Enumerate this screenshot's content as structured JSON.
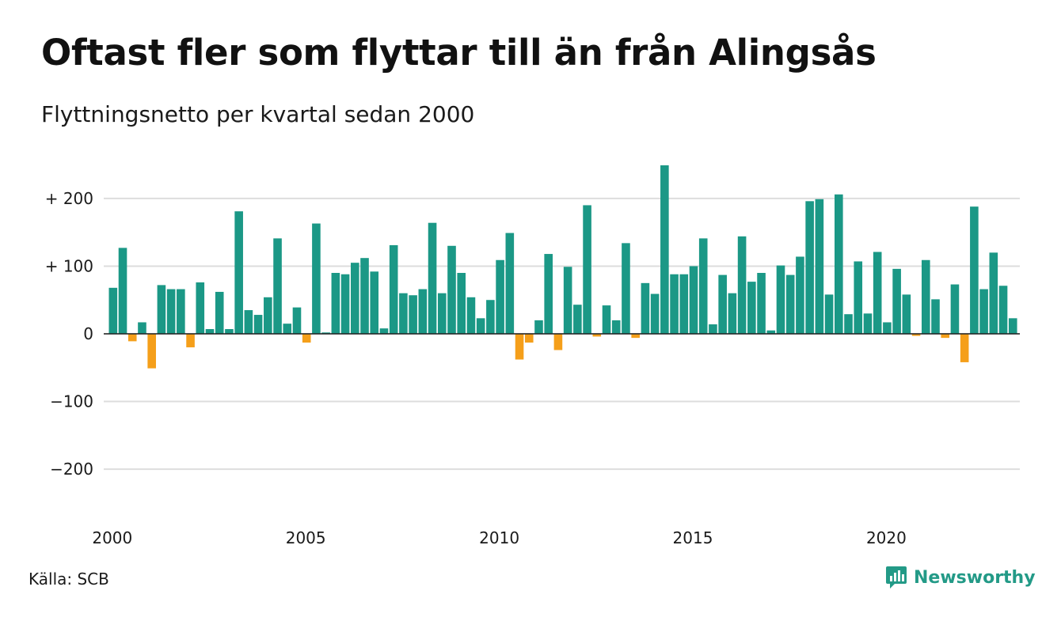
{
  "title": "Oftast fler som flyttar till än från Alingsås",
  "subtitle": "Flyttningsnetto per kvartal sedan 2000",
  "source": "Källa: SCB",
  "brand": "Newsworthy",
  "colors": {
    "positive": "#1b9886",
    "negative": "#f59f1a",
    "grid": "#dddddd",
    "brand": "#239a87"
  },
  "chart_data": {
    "type": "bar",
    "title": "Oftast fler som flyttar till än från Alingsås",
    "subtitle": "Flyttningsnetto per kvartal sedan 2000",
    "ylim": [
      -230,
      250
    ],
    "y_ticks": [
      {
        "value": 200,
        "label": "+ 200"
      },
      {
        "value": 100,
        "label": "+ 100"
      },
      {
        "value": 0,
        "label": "0"
      },
      {
        "value": -100,
        "label": "−100"
      },
      {
        "value": -200,
        "label": "−200"
      }
    ],
    "x_ticks": [
      {
        "year": 2000,
        "label": "2000"
      },
      {
        "year": 2005,
        "label": "2005"
      },
      {
        "year": 2010,
        "label": "2010"
      },
      {
        "year": 2015,
        "label": "2015"
      },
      {
        "year": 2020,
        "label": "2020"
      }
    ],
    "start_year": 2000,
    "grid": true,
    "values": [
      68,
      127,
      -11,
      17,
      -51,
      72,
      66,
      66,
      -20,
      76,
      7,
      62,
      7,
      181,
      35,
      28,
      54,
      141,
      15,
      39,
      -13,
      163,
      2,
      90,
      88,
      105,
      112,
      92,
      8,
      131,
      60,
      57,
      66,
      164,
      60,
      130,
      90,
      54,
      23,
      50,
      109,
      149,
      -38,
      -13,
      20,
      118,
      -24,
      99,
      43,
      190,
      -4,
      42,
      20,
      134,
      -6,
      75,
      59,
      249,
      88,
      88,
      100,
      141,
      14,
      87,
      60,
      144,
      77,
      90,
      5,
      101,
      87,
      114,
      196,
      199,
      58,
      206,
      29,
      107,
      30,
      121,
      17,
      96,
      58,
      -3,
      109,
      51,
      -6,
      73,
      -42,
      188,
      66,
      120,
      71,
      23
    ]
  }
}
